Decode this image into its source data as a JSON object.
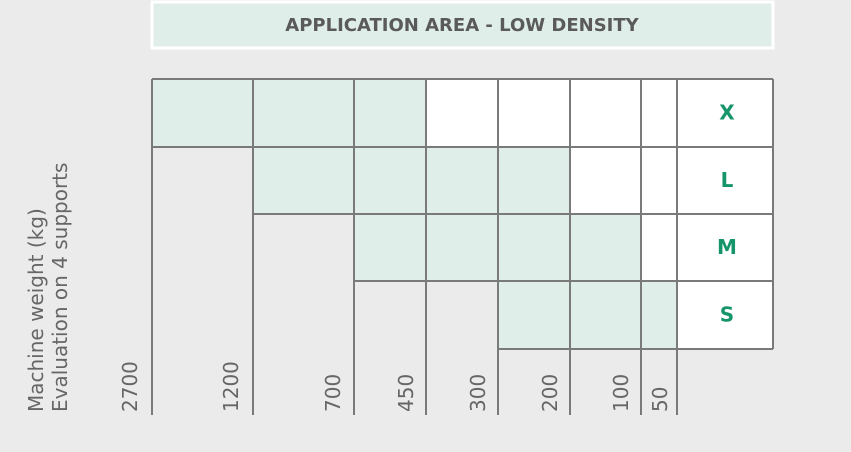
{
  "title": "APPLICATION AREA - LOW DENSITY",
  "axis_label": {
    "line1": "Machine weight (kg)",
    "line2": "Evaluation on 4 supports"
  },
  "weights": [
    "2700",
    "1200",
    "700",
    "450",
    "300",
    "200",
    "100",
    "50"
  ],
  "sizes": [
    "X",
    "L",
    "M",
    "S"
  ]
}
